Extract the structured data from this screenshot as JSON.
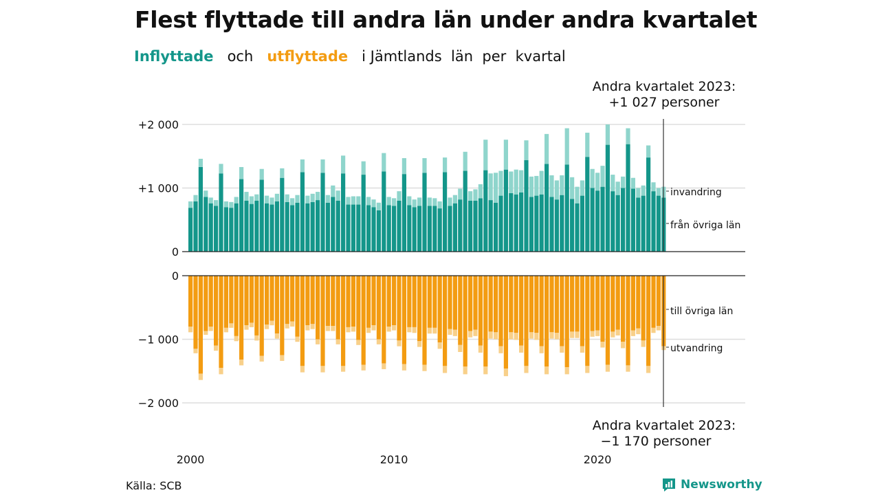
{
  "title": "Flest flyttade till andra län under andra kvartalet",
  "subtitle": {
    "inflyttade": "Inflyttade",
    "och": "och",
    "utflyttade": "utflyttade",
    "rest": "i Jämtlands  län  per  kvartal"
  },
  "source": "Källa: SCB",
  "brand": "Newsworthy",
  "colors": {
    "in_dark": "#14968a",
    "in_light": "#8fd5cc",
    "out_dark": "#f39c12",
    "out_light": "#f8d08a"
  },
  "annotations": {
    "top_line1": "Andra kvartalet 2023:",
    "top_line2": "+1 027 personer",
    "bottom_line1": "Andra kvartalet 2023:",
    "bottom_line2": "−1 170 personer"
  },
  "chart_data": [
    {
      "type": "bar",
      "stacked": true,
      "panel": "inflyttade",
      "y_ticks": [
        "+2 000",
        "+1 000",
        "0"
      ],
      "ylim": [
        0,
        2000
      ],
      "x_ticks": [
        "2000",
        "2010",
        "2020"
      ],
      "x_start": "2000 Q1",
      "x_end": "2023 Q2",
      "series": [
        {
          "name": "från övriga län",
          "values": [
            690,
            790,
            1330,
            860,
            760,
            720,
            1230,
            700,
            690,
            760,
            1140,
            800,
            750,
            800,
            1130,
            760,
            740,
            790,
            1160,
            780,
            730,
            770,
            1250,
            760,
            780,
            810,
            1240,
            770,
            860,
            800,
            1230,
            740,
            740,
            740,
            1210,
            730,
            700,
            650,
            1260,
            730,
            720,
            800,
            1220,
            730,
            700,
            720,
            1240,
            720,
            720,
            680,
            1250,
            720,
            760,
            820,
            1270,
            800,
            800,
            840,
            1280,
            810,
            770,
            880,
            1290,
            920,
            900,
            930,
            1440,
            860,
            880,
            900,
            1380,
            860,
            820,
            890,
            1370,
            830,
            760,
            880,
            1490,
            1000,
            960,
            1020,
            1680,
            950,
            890,
            1000,
            1690,
            990,
            850,
            880,
            1480,
            950,
            880,
            850
          ]
        },
        {
          "name": "invandring",
          "values": [
            100,
            100,
            130,
            100,
            90,
            90,
            150,
            90,
            90,
            100,
            190,
            140,
            120,
            100,
            170,
            120,
            110,
            120,
            150,
            120,
            110,
            120,
            200,
            120,
            130,
            130,
            210,
            120,
            180,
            160,
            280,
            120,
            130,
            130,
            210,
            130,
            120,
            120,
            290,
            130,
            120,
            150,
            250,
            140,
            120,
            130,
            230,
            130,
            120,
            110,
            230,
            130,
            130,
            170,
            300,
            150,
            180,
            220,
            480,
            420,
            470,
            390,
            470,
            340,
            390,
            350,
            310,
            320,
            310,
            370,
            470,
            340,
            300,
            310,
            570,
            340,
            260,
            240,
            380,
            300,
            280,
            330,
            320,
            260,
            210,
            180,
            250,
            170,
            150,
            160,
            190,
            140,
            120,
            170
          ]
        }
      ]
    },
    {
      "type": "bar",
      "stacked": true,
      "panel": "utflyttade",
      "y_ticks": [
        "0",
        "−1 000",
        "−2 000"
      ],
      "ylim": [
        -2000,
        0
      ],
      "x_ticks": [
        "2000",
        "2010",
        "2020"
      ],
      "x_start": "2000 Q1",
      "x_end": "2023 Q2",
      "series": [
        {
          "name": "till övriga län",
          "values": [
            -800,
            -1150,
            -1540,
            -870,
            -800,
            -1100,
            -1450,
            -820,
            -750,
            -950,
            -1320,
            -780,
            -740,
            -940,
            -1260,
            -770,
            -710,
            -910,
            -1250,
            -760,
            -720,
            -960,
            -1420,
            -780,
            -760,
            -1000,
            -1420,
            -790,
            -790,
            -1000,
            -1420,
            -810,
            -800,
            -1010,
            -1400,
            -820,
            -780,
            -1000,
            -1380,
            -800,
            -780,
            -1020,
            -1390,
            -810,
            -810,
            -1030,
            -1400,
            -820,
            -820,
            -1050,
            -1420,
            -840,
            -850,
            -1090,
            -1430,
            -870,
            -850,
            -1100,
            -1430,
            -880,
            -890,
            -1110,
            -1460,
            -890,
            -900,
            -1100,
            -1420,
            -890,
            -900,
            -1110,
            -1430,
            -890,
            -900,
            -1110,
            -1440,
            -880,
            -880,
            -1110,
            -1420,
            -870,
            -860,
            -1040,
            -1400,
            -880,
            -850,
            -1040,
            -1410,
            -860,
            -830,
            -1020,
            -1420,
            -820,
            -790,
            -1110
          ]
        },
        {
          "name": "utvandring",
          "values": [
            -90,
            -70,
            -100,
            -60,
            -70,
            -80,
            -100,
            -70,
            -70,
            -80,
            -90,
            -70,
            -70,
            -80,
            -90,
            -70,
            -70,
            -80,
            -90,
            -70,
            -80,
            -80,
            -100,
            -80,
            -80,
            -80,
            -100,
            -80,
            -80,
            -80,
            -90,
            -80,
            -80,
            -80,
            -90,
            -80,
            -80,
            -80,
            -90,
            -80,
            -80,
            -90,
            -100,
            -80,
            -90,
            -90,
            -100,
            -90,
            -90,
            -100,
            -110,
            -90,
            -100,
            -110,
            -120,
            -100,
            -100,
            -110,
            -120,
            -110,
            -110,
            -110,
            -120,
            -110,
            -110,
            -110,
            -110,
            -100,
            -110,
            -110,
            -120,
            -100,
            -100,
            -100,
            -110,
            -100,
            -100,
            -100,
            -110,
            -90,
            -90,
            -90,
            -110,
            -90,
            -90,
            -100,
            -100,
            -90,
            -90,
            -100,
            -110,
            -80,
            -70,
            -60
          ]
        }
      ]
    }
  ]
}
